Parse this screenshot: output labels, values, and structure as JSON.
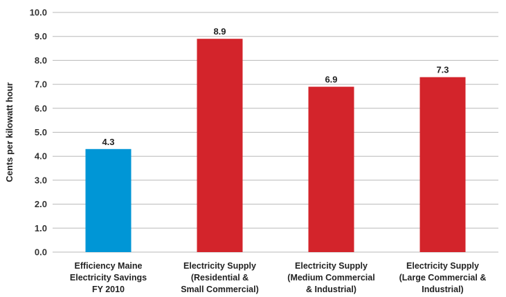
{
  "chart_data": {
    "type": "bar",
    "title": "",
    "xlabel": "",
    "ylabel": "Cents per kilowatt hour",
    "ylim": [
      0,
      10
    ],
    "ytick_step": 1,
    "ytick_labels": [
      "0.0",
      "1.0",
      "2.0",
      "3.0",
      "4.0",
      "5.0",
      "6.0",
      "7.0",
      "8.0",
      "9.0",
      "10.0"
    ],
    "grid": true,
    "categories": [
      [
        "Efficiency Maine",
        "Electricity Savings",
        "FY 2010"
      ],
      [
        "Electricity Supply",
        "(Residential &",
        "Small Commercial)"
      ],
      [
        "Electricity Supply",
        "(Medium Commercial",
        "& Industrial)"
      ],
      [
        "Electricity Supply",
        "(Large Commercial &",
        "Industrial)"
      ]
    ],
    "values": [
      4.3,
      8.9,
      6.9,
      7.3
    ],
    "data_labels": [
      "4.3",
      "8.9",
      "6.9",
      "7.3"
    ],
    "colors": [
      "#0096d6",
      "#d3242b",
      "#d3242b",
      "#d3242b"
    ]
  }
}
